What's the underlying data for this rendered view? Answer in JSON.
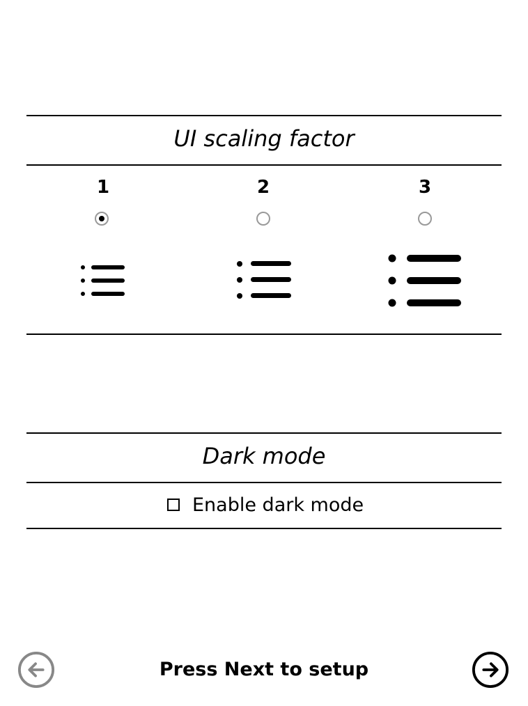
{
  "scaling": {
    "title": "UI scaling factor",
    "options": [
      {
        "label": "1",
        "selected": true,
        "icon": "list-small-icon"
      },
      {
        "label": "2",
        "selected": false,
        "icon": "list-medium-icon"
      },
      {
        "label": "3",
        "selected": false,
        "icon": "list-large-icon"
      }
    ]
  },
  "dark_mode": {
    "title": "Dark mode",
    "checkbox_label": "Enable dark mode",
    "checked": false
  },
  "footer": {
    "text": "Press Next to setup",
    "back_icon": "arrow-left-circle-icon",
    "next_icon": "arrow-right-circle-icon"
  },
  "colors": {
    "foreground": "#000000",
    "inactive_radio": "#999999",
    "background": "#ffffff"
  }
}
